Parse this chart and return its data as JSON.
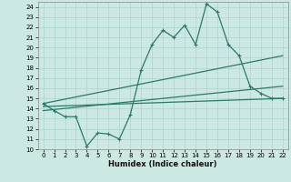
{
  "xlabel": "Humidex (Indice chaleur)",
  "bg_color": "#cce8e2",
  "grid_color": "#aad4ce",
  "line_color": "#2a7a6a",
  "xlim": [
    -0.5,
    22.5
  ],
  "ylim": [
    10,
    24.5
  ],
  "xticks": [
    0,
    1,
    2,
    3,
    4,
    5,
    6,
    7,
    8,
    9,
    10,
    11,
    12,
    13,
    14,
    15,
    16,
    17,
    18,
    19,
    20,
    21,
    22
  ],
  "yticks": [
    10,
    11,
    12,
    13,
    14,
    15,
    16,
    17,
    18,
    19,
    20,
    21,
    22,
    23,
    24
  ],
  "series1_x": [
    0,
    1,
    2,
    3,
    4,
    5,
    6,
    7,
    8,
    9,
    10,
    11,
    12,
    13,
    14,
    15,
    16,
    17,
    18,
    19,
    20,
    21,
    22
  ],
  "series1_y": [
    14.5,
    13.8,
    13.2,
    13.2,
    10.3,
    11.6,
    11.5,
    11.0,
    13.4,
    17.8,
    20.3,
    21.7,
    21.0,
    22.2,
    20.3,
    24.3,
    23.5,
    20.3,
    19.2,
    16.2,
    15.5,
    15.0,
    15.0
  ],
  "series2_x": [
    0,
    22
  ],
  "series2_y": [
    14.5,
    19.2
  ],
  "series3_x": [
    0,
    22
  ],
  "series3_y": [
    13.8,
    16.2
  ],
  "series4_x": [
    0,
    22
  ],
  "series4_y": [
    14.2,
    15.0
  ]
}
